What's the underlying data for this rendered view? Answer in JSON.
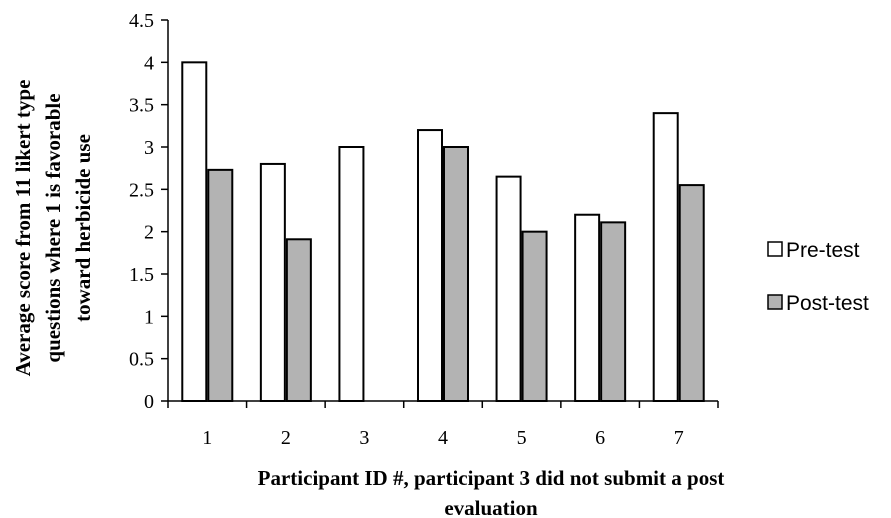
{
  "chart_data": {
    "type": "bar",
    "categories": [
      "1",
      "2",
      "3",
      "4",
      "5",
      "6",
      "7"
    ],
    "series": [
      {
        "name": "Pre-test",
        "values": [
          4.0,
          2.8,
          3.0,
          3.2,
          2.65,
          2.2,
          3.4
        ],
        "color": "#ffffff"
      },
      {
        "name": "Post-test",
        "values": [
          2.73,
          1.91,
          null,
          3.0,
          2.0,
          2.11,
          2.55
        ],
        "color": "#b3b3b3"
      }
    ],
    "ylim": [
      0,
      4.5
    ],
    "yticks": [
      "0",
      "0.5",
      "1",
      "1.5",
      "2",
      "2.5",
      "3",
      "3.5",
      "4",
      "4.5"
    ],
    "ylabel_lines": [
      "Average score from 11 likert type",
      "questions where 1 is favorable",
      "toward herbicide use"
    ],
    "xlabel_lines": [
      "Participant ID #, participant 3 did not submit a post",
      "evaluation"
    ],
    "legend_position": "right",
    "grid": false
  }
}
